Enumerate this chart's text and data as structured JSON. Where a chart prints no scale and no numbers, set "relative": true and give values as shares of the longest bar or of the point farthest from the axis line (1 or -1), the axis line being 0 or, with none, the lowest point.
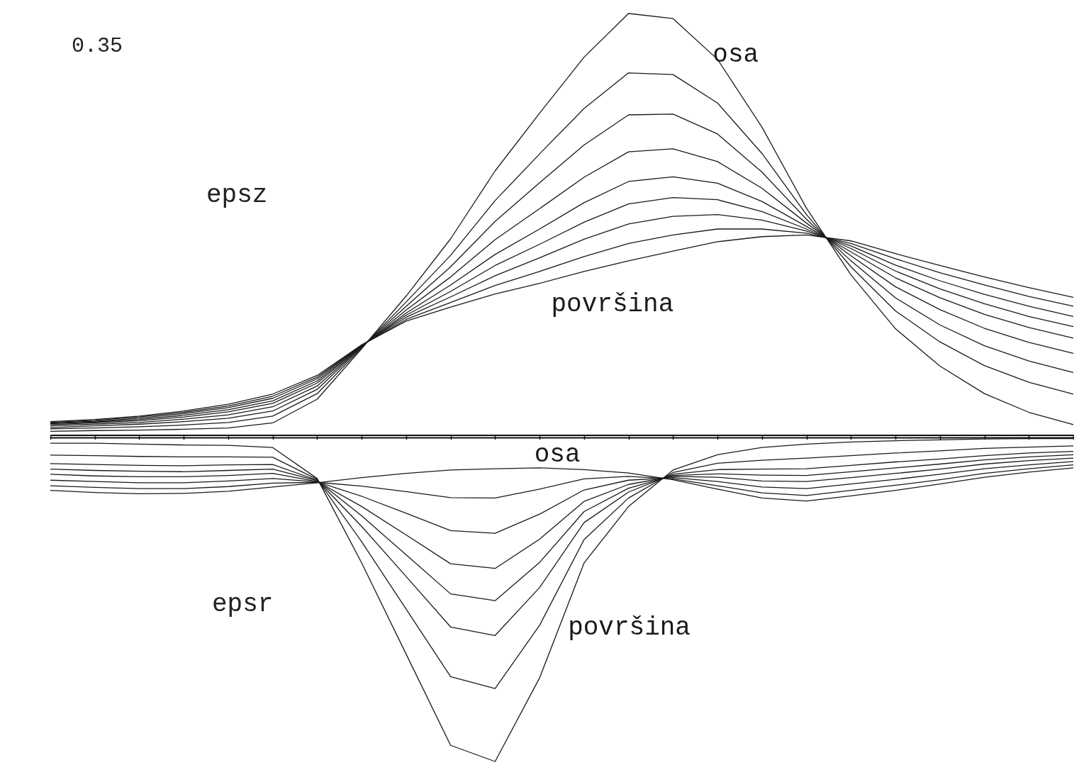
{
  "chart_data": {
    "type": "line",
    "relative": true,
    "categories": [
      null,
      null,
      null,
      null,
      null,
      null,
      null,
      null,
      null,
      null,
      null,
      null,
      null,
      null,
      null,
      null,
      null,
      null,
      null,
      null,
      null,
      null,
      null,
      null
    ],
    "annotations": [
      "0.35",
      "epsz",
      "epsr"
    ],
    "series": [
      {
        "name": "osa",
        "color": "#1a1a1a",
        "values": [
          0.015,
          0.017,
          0.018,
          0.02,
          0.023,
          0.035,
          0.091,
          0.21,
          0.334,
          0.469,
          0.629,
          0.765,
          0.897,
          1,
          0.988,
          0.892,
          0.732,
          0.541,
          0.384,
          0.257,
          0.169,
          0.104,
          0.06,
          0.031
        ]
      },
      {
        "color": "#1a1a1a",
        "values": [
          0.021,
          0.023,
          0.026,
          0.03,
          0.036,
          0.051,
          0.104,
          0.212,
          0.32,
          0.43,
          0.559,
          0.669,
          0.776,
          0.86,
          0.856,
          0.789,
          0.67,
          0.526,
          0.403,
          0.299,
          0.226,
          0.17,
          0.131,
          0.103
        ]
      },
      {
        "color": "#1a1a1a",
        "values": [
          0.024,
          0.028,
          0.032,
          0.038,
          0.046,
          0.063,
          0.114,
          0.214,
          0.31,
          0.403,
          0.51,
          0.601,
          0.69,
          0.761,
          0.763,
          0.716,
          0.626,
          0.515,
          0.417,
          0.33,
          0.266,
          0.217,
          0.181,
          0.154
        ]
      },
      {
        "color": "#1a1a1a",
        "values": [
          0.028,
          0.032,
          0.036,
          0.044,
          0.054,
          0.073,
          0.122,
          0.215,
          0.301,
          0.379,
          0.467,
          0.54,
          0.614,
          0.674,
          0.681,
          0.651,
          0.588,
          0.506,
          0.429,
          0.356,
          0.302,
          0.258,
          0.225,
          0.199
        ]
      },
      {
        "color": "#1a1a1a",
        "values": [
          0.031,
          0.035,
          0.04,
          0.049,
          0.061,
          0.081,
          0.129,
          0.216,
          0.294,
          0.36,
          0.432,
          0.492,
          0.554,
          0.604,
          0.615,
          0.6,
          0.557,
          0.498,
          0.438,
          0.377,
          0.33,
          0.291,
          0.26,
          0.235
        ]
      },
      {
        "color": "#1a1a1a",
        "values": [
          0.033,
          0.037,
          0.043,
          0.053,
          0.066,
          0.087,
          0.134,
          0.217,
          0.289,
          0.345,
          0.406,
          0.456,
          0.508,
          0.551,
          0.566,
          0.561,
          0.533,
          0.492,
          0.446,
          0.393,
          0.351,
          0.316,
          0.286,
          0.262
        ]
      },
      {
        "color": "#1a1a1a",
        "values": [
          0.035,
          0.039,
          0.046,
          0.057,
          0.071,
          0.093,
          0.139,
          0.218,
          0.284,
          0.332,
          0.382,
          0.424,
          0.468,
          0.504,
          0.522,
          0.526,
          0.513,
          0.487,
          0.452,
          0.407,
          0.37,
          0.338,
          0.31,
          0.286
        ]
      },
      {
        "color": "#1a1a1a",
        "values": [
          0.036,
          0.041,
          0.049,
          0.06,
          0.075,
          0.098,
          0.143,
          0.218,
          0.279,
          0.319,
          0.359,
          0.392,
          0.427,
          0.458,
          0.478,
          0.492,
          0.492,
          0.482,
          0.458,
          0.422,
          0.389,
          0.36,
          0.333,
          0.31
        ]
      },
      {
        "name": "površina",
        "color": "#1a1a1a",
        "values": [
          0.038,
          0.043,
          0.051,
          0.063,
          0.079,
          0.103,
          0.147,
          0.219,
          0.275,
          0.308,
          0.339,
          0.364,
          0.392,
          0.417,
          0.44,
          0.462,
          0.474,
          0.478,
          0.464,
          0.434,
          0.406,
          0.379,
          0.354,
          0.331
        ]
      },
      {
        "name": "osa",
        "color": "#1a1a1a",
        "values": [
          -0.124,
          -0.129,
          -0.132,
          -0.131,
          -0.126,
          -0.116,
          -0.106,
          -0.094,
          -0.084,
          -0.076,
          -0.073,
          -0.071,
          -0.075,
          -0.083,
          -0.099,
          -0.121,
          -0.142,
          -0.149,
          -0.137,
          -0.124,
          -0.109,
          -0.093,
          -0.081,
          -0.071
        ]
      },
      {
        "color": "#1a1a1a",
        "values": [
          -0.113,
          -0.117,
          -0.12,
          -0.12,
          -0.115,
          -0.107,
          -0.105,
          -0.114,
          -0.127,
          -0.141,
          -0.142,
          -0.121,
          -0.097,
          -0.091,
          -0.097,
          -0.113,
          -0.13,
          -0.136,
          -0.124,
          -0.112,
          -0.099,
          -0.084,
          -0.073,
          -0.064
        ]
      },
      {
        "color": "#1a1a1a",
        "values": [
          -0.1,
          -0.103,
          -0.106,
          -0.106,
          -0.102,
          -0.096,
          -0.104,
          -0.138,
          -0.178,
          -0.219,
          -0.225,
          -0.18,
          -0.123,
          -0.1,
          -0.094,
          -0.103,
          -0.116,
          -0.12,
          -0.109,
          -0.098,
          -0.086,
          -0.073,
          -0.064,
          -0.056
        ]
      },
      {
        "color": "#1a1a1a",
        "values": [
          -0.086,
          -0.09,
          -0.092,
          -0.092,
          -0.089,
          -0.084,
          -0.103,
          -0.162,
          -0.229,
          -0.297,
          -0.308,
          -0.239,
          -0.15,
          -0.11,
          -0.091,
          -0.093,
          -0.102,
          -0.103,
          -0.094,
          -0.084,
          -0.074,
          -0.062,
          -0.054,
          -0.048
        ]
      },
      {
        "color": "#1a1a1a",
        "values": [
          -0.074,
          -0.077,
          -0.079,
          -0.08,
          -0.077,
          -0.074,
          -0.101,
          -0.184,
          -0.276,
          -0.368,
          -0.384,
          -0.294,
          -0.174,
          -0.119,
          -0.089,
          -0.085,
          -0.088,
          -0.089,
          -0.08,
          -0.071,
          -0.062,
          -0.052,
          -0.045,
          -0.04
        ]
      },
      {
        "color": "#1a1a1a",
        "values": [
          -0.061,
          -0.063,
          -0.065,
          -0.066,
          -0.064,
          -0.063,
          -0.1,
          -0.209,
          -0.327,
          -0.446,
          -0.466,
          -0.353,
          -0.2,
          -0.128,
          -0.086,
          -0.075,
          -0.074,
          -0.073,
          -0.065,
          -0.057,
          -0.05,
          -0.042,
          -0.036,
          -0.032
        ]
      },
      {
        "color": "#1a1a1a",
        "values": [
          -0.041,
          -0.042,
          -0.044,
          -0.045,
          -0.045,
          -0.046,
          -0.098,
          -0.245,
          -0.404,
          -0.563,
          -0.591,
          -0.442,
          -0.24,
          -0.142,
          -0.082,
          -0.06,
          -0.053,
          -0.048,
          -0.042,
          -0.036,
          -0.031,
          -0.025,
          -0.022,
          -0.019
        ]
      },
      {
        "name": "površina",
        "color": "#1a1a1a",
        "values": [
          -0.013,
          -0.013,
          -0.015,
          -0.017,
          -0.018,
          -0.023,
          -0.096,
          -0.295,
          -0.51,
          -0.725,
          -0.763,
          -0.566,
          -0.295,
          -0.162,
          -0.076,
          -0.04,
          -0.023,
          -0.015,
          -0.01,
          -0.007,
          -0.005,
          -0.003,
          -0.002,
          -0.002
        ]
      }
    ]
  }
}
